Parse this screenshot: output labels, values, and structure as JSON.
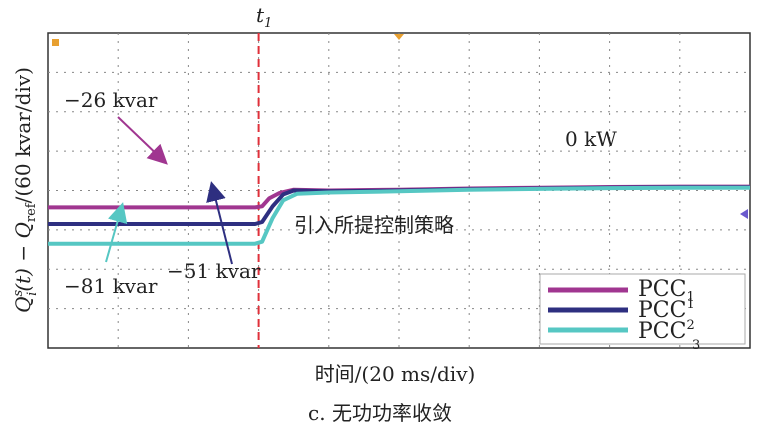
{
  "chart_data": {
    "type": "line",
    "xlabel": "时间/(20 ms/div)",
    "ylabel": "Q_i^s(t) − Q̄_ref/(60 kvar/div)",
    "ylabel_parts": {
      "q": "Q",
      "sup": "s",
      "sub": "i",
      "arg": "(t) − ",
      "qbar": "Q",
      "ref": "ref",
      "unit": "/(60 kvar/div)"
    },
    "caption": "c. 无功功率收敛",
    "x_divisions": 10,
    "y_divisions": 8,
    "x_range": [
      0,
      10
    ],
    "y_range": [
      -4,
      4
    ],
    "event_marker": {
      "label": "t",
      "sub": "1",
      "x_div": 3.0,
      "color": "#e0303a"
    },
    "annotation_after": "引入所提控制策略",
    "series": [
      {
        "name": "PCC1",
        "color": "#a03690",
        "initial_label": "−26 kvar",
        "points": [
          [
            0,
            -0.43
          ],
          [
            2.95,
            -0.43
          ],
          [
            3.05,
            -0.4
          ],
          [
            3.15,
            -0.2
          ],
          [
            3.3,
            -0.06
          ],
          [
            3.5,
            0.02
          ],
          [
            4.0,
            0.0
          ],
          [
            5.0,
            0.02
          ],
          [
            6.0,
            0.05
          ],
          [
            7.0,
            0.07
          ],
          [
            8.0,
            0.09
          ],
          [
            9.0,
            0.1
          ],
          [
            10.0,
            0.1
          ]
        ]
      },
      {
        "name": "PCC2",
        "color": "#2e2f80",
        "initial_label": "−51 kvar",
        "points": [
          [
            0,
            -0.85
          ],
          [
            2.95,
            -0.85
          ],
          [
            3.05,
            -0.8
          ],
          [
            3.2,
            -0.4
          ],
          [
            3.35,
            -0.1
          ],
          [
            3.5,
            0.0
          ],
          [
            4.0,
            -0.02
          ],
          [
            5.0,
            0.0
          ],
          [
            6.0,
            0.03
          ],
          [
            7.0,
            0.05
          ],
          [
            8.0,
            0.07
          ],
          [
            9.0,
            0.08
          ],
          [
            10.0,
            0.08
          ]
        ]
      },
      {
        "name": "PCC3",
        "color": "#56c7c3",
        "initial_label": "−81 kvar",
        "points": [
          [
            0,
            -1.35
          ],
          [
            2.95,
            -1.35
          ],
          [
            3.05,
            -1.3
          ],
          [
            3.2,
            -0.7
          ],
          [
            3.35,
            -0.25
          ],
          [
            3.55,
            -0.08
          ],
          [
            4.0,
            -0.05
          ],
          [
            5.0,
            -0.02
          ],
          [
            6.0,
            0.02
          ],
          [
            7.0,
            0.04
          ],
          [
            8.0,
            0.06
          ],
          [
            9.0,
            0.07
          ],
          [
            10.0,
            0.07
          ]
        ]
      }
    ],
    "final_label": "0 kW",
    "legend": {
      "placement": "bottom-right",
      "items": [
        {
          "base": "PCC",
          "script": "1",
          "pos": "sub"
        },
        {
          "base": "PCC",
          "script": "1",
          "pos": "sup"
        },
        {
          "base": "PCC",
          "script": "2",
          "pos": "sup"
        }
      ],
      "trailing_sub": "3"
    },
    "grid": true
  }
}
